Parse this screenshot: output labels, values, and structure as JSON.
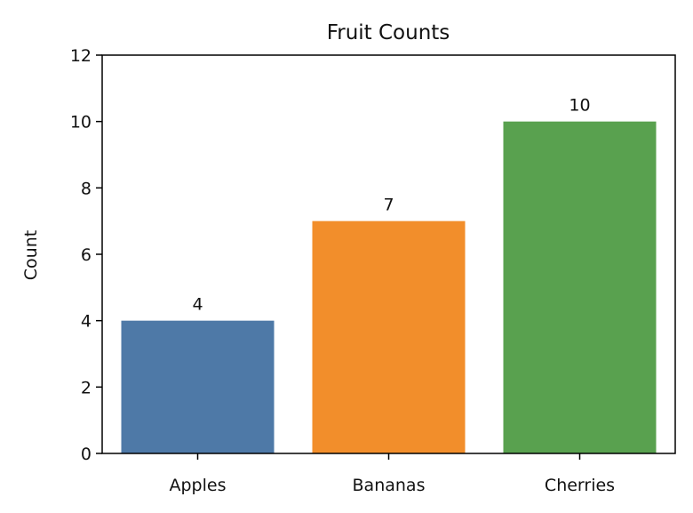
{
  "chart_data": {
    "type": "bar",
    "title": "Fruit Counts",
    "xlabel": "",
    "ylabel": "Count",
    "categories": [
      "Apples",
      "Bananas",
      "Cherries"
    ],
    "values": [
      4,
      7,
      10
    ],
    "data_labels": [
      "4",
      "7",
      "10"
    ],
    "colors": [
      "#4e79a7",
      "#f28e2b",
      "#59a14f"
    ],
    "ylim": [
      0,
      12
    ],
    "yticks": [
      0,
      2,
      4,
      6,
      8,
      10,
      12
    ],
    "ytick_labels": [
      "0",
      "2",
      "4",
      "6",
      "8",
      "10",
      "12"
    ],
    "grid": false,
    "legend": "none"
  }
}
